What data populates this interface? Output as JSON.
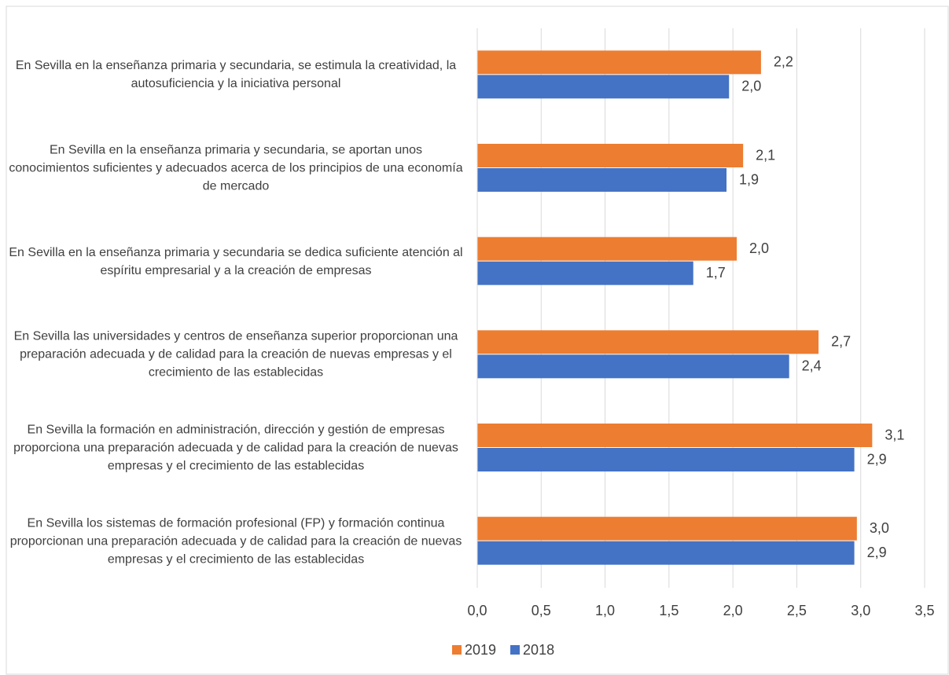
{
  "chart_data": {
    "type": "barh",
    "categories": [
      "En Sevilla en la enseñanza primaria y secundaria, se estimula la creatividad, la autosuficiencia y la iniciativa personal",
      "En Sevilla en la enseñanza primaria y secundaria, se aportan unos conocimientos suficientes y adecuados acerca de los principios de una economía de mercado",
      "En Sevilla en la enseñanza primaria y secundaria se dedica suficiente atención al espíritu empresarial y a la creación de empresas",
      "En Sevilla las universidades y centros de enseñanza superior proporcionan una preparación adecuada y de calidad para la creación de nuevas empresas y el crecimiento de las establecidas",
      "En Sevilla la formación en administración, dirección y gestión de empresas proporciona una preparación adecuada y de calidad para la creación de nuevas empresas y el crecimiento de las establecidas",
      "En Sevilla los sistemas de formación profesional (FP) y formación continua proporcionan una preparación adecuada y de calidad para la creación de nuevas empresas y el crecimiento de las establecidas"
    ],
    "series": [
      {
        "name": "2019",
        "color": "#ed7d31",
        "values": [
          2.22,
          2.08,
          2.03,
          2.67,
          3.09,
          2.97
        ],
        "value_labels": [
          "2,2",
          "2,1",
          "2,0",
          "2,7",
          "3,1",
          "3,0"
        ]
      },
      {
        "name": "2018",
        "color": "#4472c4",
        "values": [
          1.97,
          1.95,
          1.69,
          2.44,
          2.95,
          2.95
        ],
        "value_labels": [
          "2,0",
          "1,9",
          "1,7",
          "2,4",
          "2,9",
          "2,9"
        ]
      }
    ],
    "xlim": [
      0,
      3.5
    ],
    "xticks": [
      {
        "value": 0,
        "label": "0,0"
      },
      {
        "value": 0.5,
        "label": "0,5"
      },
      {
        "value": 1,
        "label": "1,0"
      },
      {
        "value": 1.5,
        "label": "1,5"
      },
      {
        "value": 2,
        "label": "2,0"
      },
      {
        "value": 2.5,
        "label": "2,5"
      },
      {
        "value": 3,
        "label": "3,0"
      },
      {
        "value": 3.5,
        "label": "3,5"
      }
    ],
    "grid": true,
    "legend": "bottom"
  }
}
